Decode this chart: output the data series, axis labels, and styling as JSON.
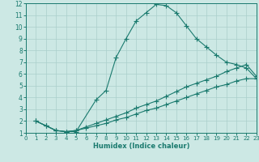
{
  "xlabel": "Humidex (Indice chaleur)",
  "xlim": [
    0,
    23
  ],
  "ylim": [
    1,
    12
  ],
  "xticks": [
    0,
    1,
    2,
    3,
    4,
    5,
    6,
    7,
    8,
    9,
    10,
    11,
    12,
    13,
    14,
    15,
    16,
    17,
    18,
    19,
    20,
    21,
    22,
    23
  ],
  "yticks": [
    1,
    2,
    3,
    4,
    5,
    6,
    7,
    8,
    9,
    10,
    11,
    12
  ],
  "line_color": "#1a7a6e",
  "bg_color": "#cce8e4",
  "grid_color": "#aacfcb",
  "line1_x": [
    1,
    2,
    3,
    4,
    5,
    7,
    8,
    9,
    10,
    11,
    12,
    13,
    14,
    15,
    16,
    17,
    18,
    19,
    20,
    21,
    22,
    23
  ],
  "line1_y": [
    2.0,
    1.6,
    1.2,
    1.1,
    1.1,
    3.8,
    4.6,
    7.4,
    9.0,
    10.5,
    11.2,
    11.9,
    11.8,
    11.2,
    10.1,
    9.0,
    8.3,
    7.6,
    7.0,
    6.8,
    6.5,
    5.6
  ],
  "line2_x": [
    1,
    2,
    3,
    4,
    5,
    6,
    7,
    8,
    9,
    10,
    11,
    12,
    13,
    14,
    15,
    16,
    17,
    18,
    19,
    20,
    21,
    22,
    23
  ],
  "line2_y": [
    2.0,
    1.6,
    1.2,
    1.1,
    1.2,
    1.5,
    1.8,
    2.1,
    2.4,
    2.7,
    3.1,
    3.4,
    3.7,
    4.1,
    4.5,
    4.9,
    5.2,
    5.5,
    5.8,
    6.2,
    6.5,
    6.8,
    5.8
  ],
  "line3_x": [
    1,
    2,
    3,
    4,
    5,
    6,
    7,
    8,
    9,
    10,
    11,
    12,
    13,
    14,
    15,
    16,
    17,
    18,
    19,
    20,
    21,
    22,
    23
  ],
  "line3_y": [
    2.0,
    1.6,
    1.2,
    1.1,
    1.2,
    1.4,
    1.6,
    1.8,
    2.1,
    2.3,
    2.6,
    2.9,
    3.1,
    3.4,
    3.7,
    4.0,
    4.3,
    4.6,
    4.9,
    5.1,
    5.4,
    5.6,
    5.6
  ],
  "marker": "+",
  "markersize": 4,
  "linewidth": 0.8,
  "tick_fontsize": 5.5,
  "xlabel_fontsize": 6.0
}
